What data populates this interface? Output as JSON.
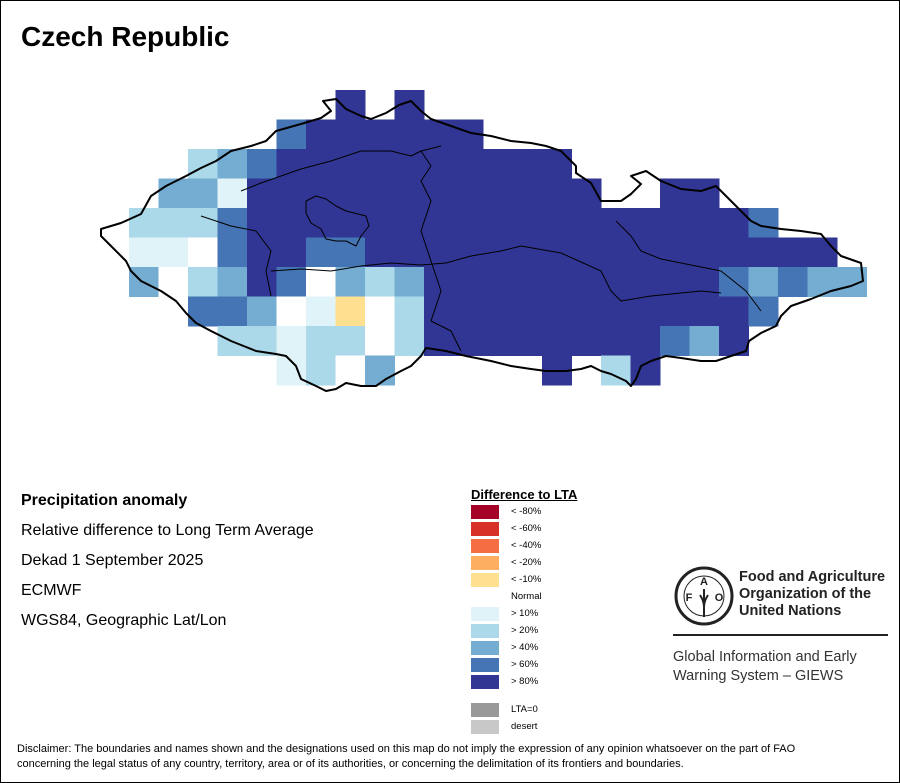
{
  "title": "Czech Republic",
  "info": {
    "heading": "Precipitation anomaly",
    "lines": [
      "Relative difference to Long Term Average",
      "Dekad 1 September 2025",
      "ECMWF",
      "WGS84, Geographic Lat/Lon"
    ]
  },
  "legend": {
    "title": "Difference to LTA",
    "items": [
      {
        "label": "< -80%",
        "color": "#a50026"
      },
      {
        "label": "< -60%",
        "color": "#d73027"
      },
      {
        "label": "< -40%",
        "color": "#f46d43"
      },
      {
        "label": "< -20%",
        "color": "#fdae61"
      },
      {
        "label": "< -10%",
        "color": "#fee090"
      },
      {
        "label": "Normal",
        "color": "#ffffff"
      },
      {
        "label": "> 10%",
        "color": "#e0f3f8"
      },
      {
        "label": "> 20%",
        "color": "#abd9e9"
      },
      {
        "label": "> 40%",
        "color": "#74add1"
      },
      {
        "label": "> 60%",
        "color": "#4575b4"
      },
      {
        "label": "> 80%",
        "color": "#313695"
      },
      {
        "label": "LTA=0",
        "color": "#999999"
      },
      {
        "label": "desert",
        "color": "#c8c8c8"
      }
    ]
  },
  "anomaly_grid": {
    "codes": {
      "Y": "< -10%",
      "W": "Normal",
      "P": "> 10%",
      "L": "> 20%",
      "M": "> 40%",
      "B": "> 60%",
      "N": "> 80%"
    },
    "colors": {
      "Y": "#fee090",
      "W": "#ffffff",
      "P": "#e0f3f8",
      "L": "#abd9e9",
      "M": "#74add1",
      "B": "#4575b4",
      "N": "#313695"
    },
    "rows": [
      ".......N.N...............",
      ".....BNNNNNN.............",
      "..LMBNNNNNNNNNN..........",
      ".MMPNNNNNNNNNNNN..NN.....",
      "LLLBNNNNNNNNNNNNNNNNNB...",
      "PPWBNNBBNNNNNNNNNNNNNNNN.",
      "MWLMNBWMLMNNNNNNNNNNBMBMM",
      "..BBMWPYWLNNNNNNNNNNNB...",
      "...LLPLLWLNNNNNNNNBMN....",
      ".....PLWM.....N.LN......."
    ]
  },
  "org": {
    "logo_text": "FAO FIAT PANIS",
    "name_lines": [
      "Food and Agriculture",
      "Organization of the",
      "United Nations"
    ],
    "giews_lines": [
      "Global Information and Early",
      "Warning System – GIEWS"
    ]
  },
  "disclaimer": {
    "lines": [
      "Disclaimer: The boundaries and names shown and the designations used on this map do not imply the expression of any opinion whatsoever on the part of FAO",
      "concerning the legal status of any country, territory, area or of its authorities, or concerning the delimitation of its frontiers and boundaries."
    ]
  }
}
